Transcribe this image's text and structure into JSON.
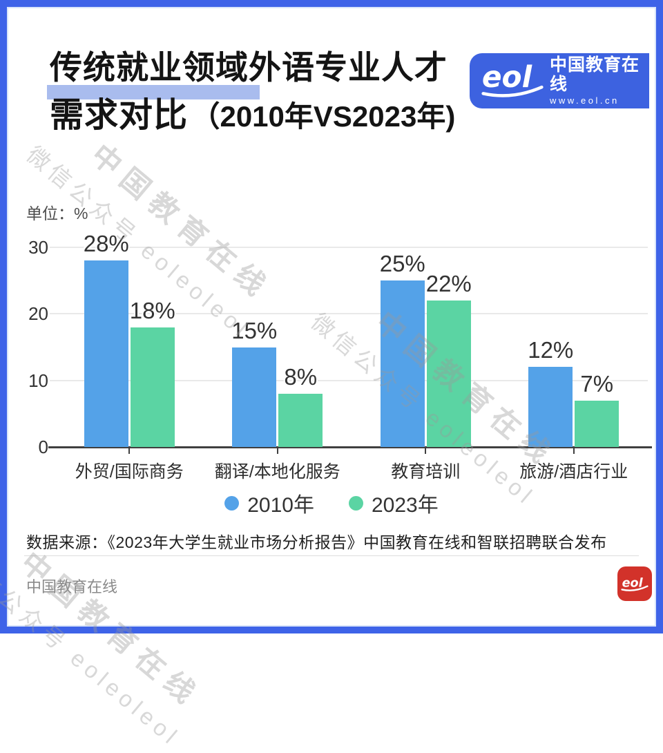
{
  "frame": {
    "border_color": "#3E63E8"
  },
  "header": {
    "title_line1": "传统就业领域外语专业人才",
    "title_line2": "需求对比",
    "title_line2_suffix": "（2010年VS2023年)",
    "highlight_color": "#A9BCEE"
  },
  "logo": {
    "mark": "eol",
    "brand": "中国教育在线",
    "url": "www.eol.cn",
    "bg_color": "#3D62E0"
  },
  "watermark": {
    "line1": "中国教育在线",
    "line2": "微信公众号 eoleoleol"
  },
  "chart_data": {
    "type": "bar",
    "title": "传统就业领域外语专业人才需求对比（2010年VS2023年）",
    "unit_label": "单位：%",
    "categories": [
      "外贸/国际商务",
      "翻译/本地化服务",
      "教育培训",
      "旅游/酒店行业"
    ],
    "series": [
      {
        "name": "2010年",
        "color": "#54A2E8",
        "values": [
          28,
          15,
          25,
          12
        ]
      },
      {
        "name": "2023年",
        "color": "#5BD4A3",
        "values": [
          18,
          8,
          22,
          7
        ]
      }
    ],
    "value_suffix": "%",
    "ylabel": "单位：%",
    "yticks": [
      0,
      10,
      20,
      30
    ],
    "ylim": [
      0,
      30
    ],
    "grid": true,
    "legend_position": "bottom"
  },
  "footer": {
    "source": "数据来源：《2023年大学生就业市场分析报告》中国教育在线和智联招聘联合发布",
    "brand": "中国教育在线",
    "logo_color": "#D2322A"
  }
}
